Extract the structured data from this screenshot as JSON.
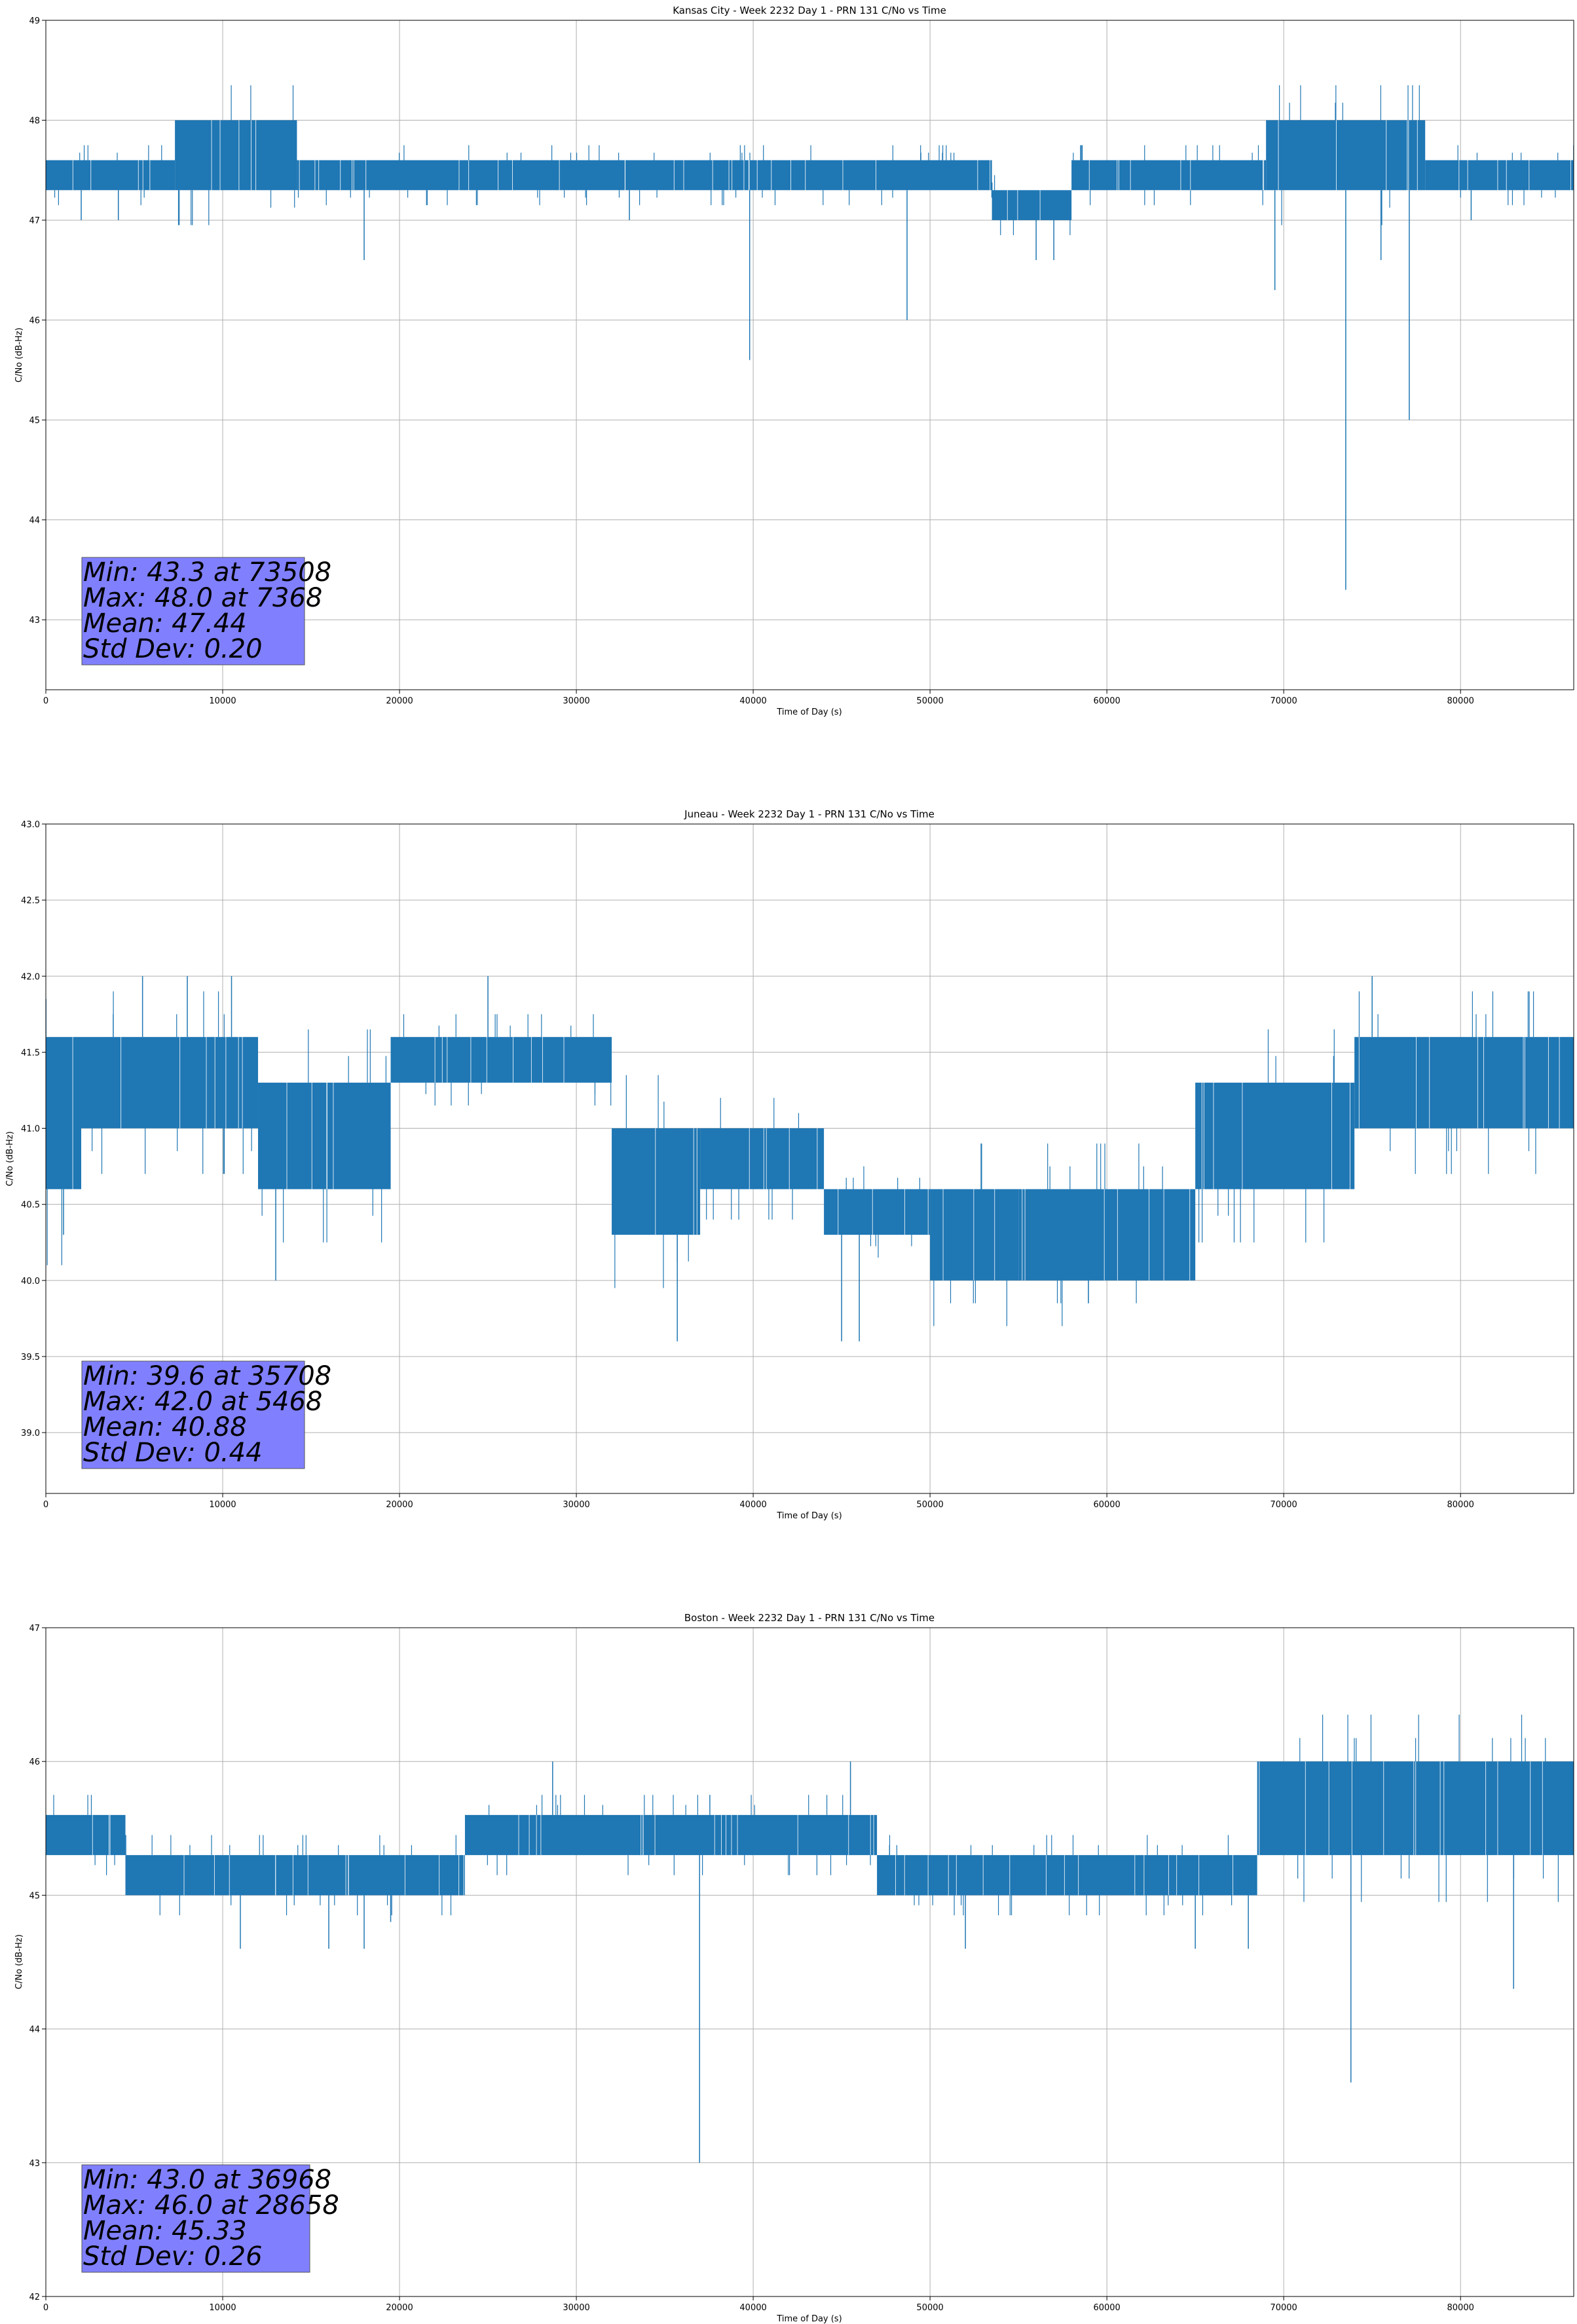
{
  "chart_data": [
    {
      "type": "line",
      "title": "Kansas City - Week 2232 Day 1 - PRN 131 C/No vs Time",
      "xlabel": "Time of Day (s)",
      "ylabel": "C/No (dB-Hz)",
      "xlim": [
        0,
        86400
      ],
      "ylim": [
        42.3,
        49.0
      ],
      "xticks": [
        0,
        10000,
        20000,
        30000,
        40000,
        50000,
        60000,
        70000,
        80000
      ],
      "xtick_labels": [
        "0",
        "10000",
        "20000",
        "30000",
        "40000",
        "50000",
        "60000",
        "70000",
        "80000"
      ],
      "yticks": [
        43,
        44,
        45,
        46,
        47,
        48,
        49
      ],
      "ytick_labels": [
        "43",
        "44",
        "45",
        "46",
        "47",
        "48",
        "49"
      ],
      "grid": true,
      "line_color": "#1f77b4",
      "stats_box_color": "#8080ff",
      "stats_lines": [
        "Min: 43.3 at 73508",
        "Max: 48.0 at 7368",
        "Mean: 47.44",
        "Std Dev: 0.20"
      ],
      "segments": [
        {
          "x": [
            0,
            7300
          ],
          "base": 47.3,
          "top": 47.6
        },
        {
          "x": [
            7300,
            14200
          ],
          "base": 47.3,
          "top": 48.0
        },
        {
          "x": [
            14200,
            53500
          ],
          "base": 47.3,
          "top": 47.6
        },
        {
          "x": [
            53500,
            58000
          ],
          "base": 47.0,
          "top": 47.3
        },
        {
          "x": [
            58000,
            69000
          ],
          "base": 47.3,
          "top": 47.6
        },
        {
          "x": [
            69000,
            78000
          ],
          "base": 47.3,
          "top": 48.0
        },
        {
          "x": [
            78000,
            86400
          ],
          "base": 47.3,
          "top": 47.6
        }
      ],
      "spikes": [
        {
          "x": 73508,
          "y": 43.3
        },
        {
          "x": 39800,
          "y": 45.6
        },
        {
          "x": 77100,
          "y": 45.0
        },
        {
          "x": 48700,
          "y": 46.0
        },
        {
          "x": 69500,
          "y": 46.3
        },
        {
          "x": 75500,
          "y": 46.6
        },
        {
          "x": 18000,
          "y": 46.6
        },
        {
          "x": 2000,
          "y": 47.0
        },
        {
          "x": 4100,
          "y": 47.0
        },
        {
          "x": 33000,
          "y": 47.0
        },
        {
          "x": 56000,
          "y": 46.6
        },
        {
          "x": 57000,
          "y": 46.6
        },
        {
          "x": 80600,
          "y": 47.0
        }
      ]
    },
    {
      "type": "line",
      "title": "Juneau - Week 2232 Day 1 - PRN 131 C/No vs Time",
      "xlabel": "Time of Day (s)",
      "ylabel": "C/No (dB-Hz)",
      "xlim": [
        0,
        86400
      ],
      "ylim": [
        38.6,
        43.0
      ],
      "xticks": [
        0,
        10000,
        20000,
        30000,
        40000,
        50000,
        60000,
        70000,
        80000
      ],
      "xtick_labels": [
        "0",
        "10000",
        "20000",
        "30000",
        "40000",
        "50000",
        "60000",
        "70000",
        "80000"
      ],
      "yticks": [
        39.0,
        39.5,
        40.0,
        40.5,
        41.0,
        41.5,
        42.0,
        42.5,
        43.0
      ],
      "ytick_labels": [
        "39.0",
        "39.5",
        "40.0",
        "40.5",
        "41.0",
        "41.5",
        "42.0",
        "42.5",
        "43.0"
      ],
      "grid": true,
      "line_color": "#1f77b4",
      "stats_box_color": "#8080ff",
      "stats_lines": [
        "Min: 39.6 at 35708",
        "Max: 42.0 at 5468",
        "Mean: 40.88",
        "Std Dev: 0.44"
      ],
      "segments": [
        {
          "x": [
            0,
            2000
          ],
          "base": 40.6,
          "top": 41.6
        },
        {
          "x": [
            2000,
            12000
          ],
          "base": 41.0,
          "top": 41.6
        },
        {
          "x": [
            12000,
            19500
          ],
          "base": 40.6,
          "top": 41.3
        },
        {
          "x": [
            19500,
            32000
          ],
          "base": 41.3,
          "top": 41.6
        },
        {
          "x": [
            32000,
            37000
          ],
          "base": 40.3,
          "top": 41.0
        },
        {
          "x": [
            37000,
            44000
          ],
          "base": 40.6,
          "top": 41.0
        },
        {
          "x": [
            44000,
            50000
          ],
          "base": 40.3,
          "top": 40.6
        },
        {
          "x": [
            50000,
            55000
          ],
          "base": 40.0,
          "top": 40.6
        },
        {
          "x": [
            55000,
            65000
          ],
          "base": 40.0,
          "top": 40.6
        },
        {
          "x": [
            65000,
            74000
          ],
          "base": 40.6,
          "top": 41.3
        },
        {
          "x": [
            74000,
            86400
          ],
          "base": 41.0,
          "top": 41.6
        }
      ],
      "spikes": [
        {
          "x": 35708,
          "y": 39.6
        },
        {
          "x": 45000,
          "y": 39.6
        },
        {
          "x": 46000,
          "y": 39.6
        },
        {
          "x": 13000,
          "y": 40.0
        },
        {
          "x": 1000,
          "y": 40.3
        },
        {
          "x": 5468,
          "y": 42.0
        },
        {
          "x": 8000,
          "y": 42.0
        },
        {
          "x": 10500,
          "y": 42.0
        },
        {
          "x": 25000,
          "y": 42.0
        },
        {
          "x": 75000,
          "y": 42.0
        }
      ]
    },
    {
      "type": "line",
      "title": "Boston - Week 2232 Day 1 - PRN 131 C/No vs Time",
      "xlabel": "Time of Day (s)",
      "ylabel": "C/No (dB-Hz)",
      "xlim": [
        0,
        86400
      ],
      "ylim": [
        42.0,
        47.0
      ],
      "xticks": [
        0,
        10000,
        20000,
        30000,
        40000,
        50000,
        60000,
        70000,
        80000
      ],
      "xtick_labels": [
        "0",
        "10000",
        "20000",
        "30000",
        "40000",
        "50000",
        "60000",
        "70000",
        "80000"
      ],
      "yticks": [
        42,
        43,
        44,
        45,
        46,
        47
      ],
      "ytick_labels": [
        "42",
        "43",
        "44",
        "45",
        "46",
        "47"
      ],
      "grid": true,
      "line_color": "#1f77b4",
      "stats_box_color": "#8080ff",
      "stats_lines": [
        "Min: 43.0 at 36968",
        "Max: 46.0 at 28658",
        "Mean: 45.33",
        "Std Dev: 0.26"
      ],
      "segments": [
        {
          "x": [
            0,
            4500
          ],
          "base": 45.3,
          "top": 45.6
        },
        {
          "x": [
            4500,
            23700
          ],
          "base": 45.0,
          "top": 45.3
        },
        {
          "x": [
            23700,
            47000
          ],
          "base": 45.3,
          "top": 45.6
        },
        {
          "x": [
            47000,
            68500
          ],
          "base": 45.0,
          "top": 45.3
        },
        {
          "x": [
            68500,
            86400
          ],
          "base": 45.3,
          "top": 46.0
        }
      ],
      "spikes": [
        {
          "x": 36968,
          "y": 43.0
        },
        {
          "x": 73800,
          "y": 43.6
        },
        {
          "x": 83000,
          "y": 44.3
        },
        {
          "x": 11000,
          "y": 44.6
        },
        {
          "x": 16000,
          "y": 44.6
        },
        {
          "x": 18000,
          "y": 44.6
        },
        {
          "x": 19500,
          "y": 44.8
        },
        {
          "x": 28658,
          "y": 46.0
        },
        {
          "x": 45500,
          "y": 46.0
        },
        {
          "x": 52000,
          "y": 44.6
        },
        {
          "x": 65000,
          "y": 44.6
        },
        {
          "x": 68000,
          "y": 44.6
        }
      ]
    }
  ]
}
